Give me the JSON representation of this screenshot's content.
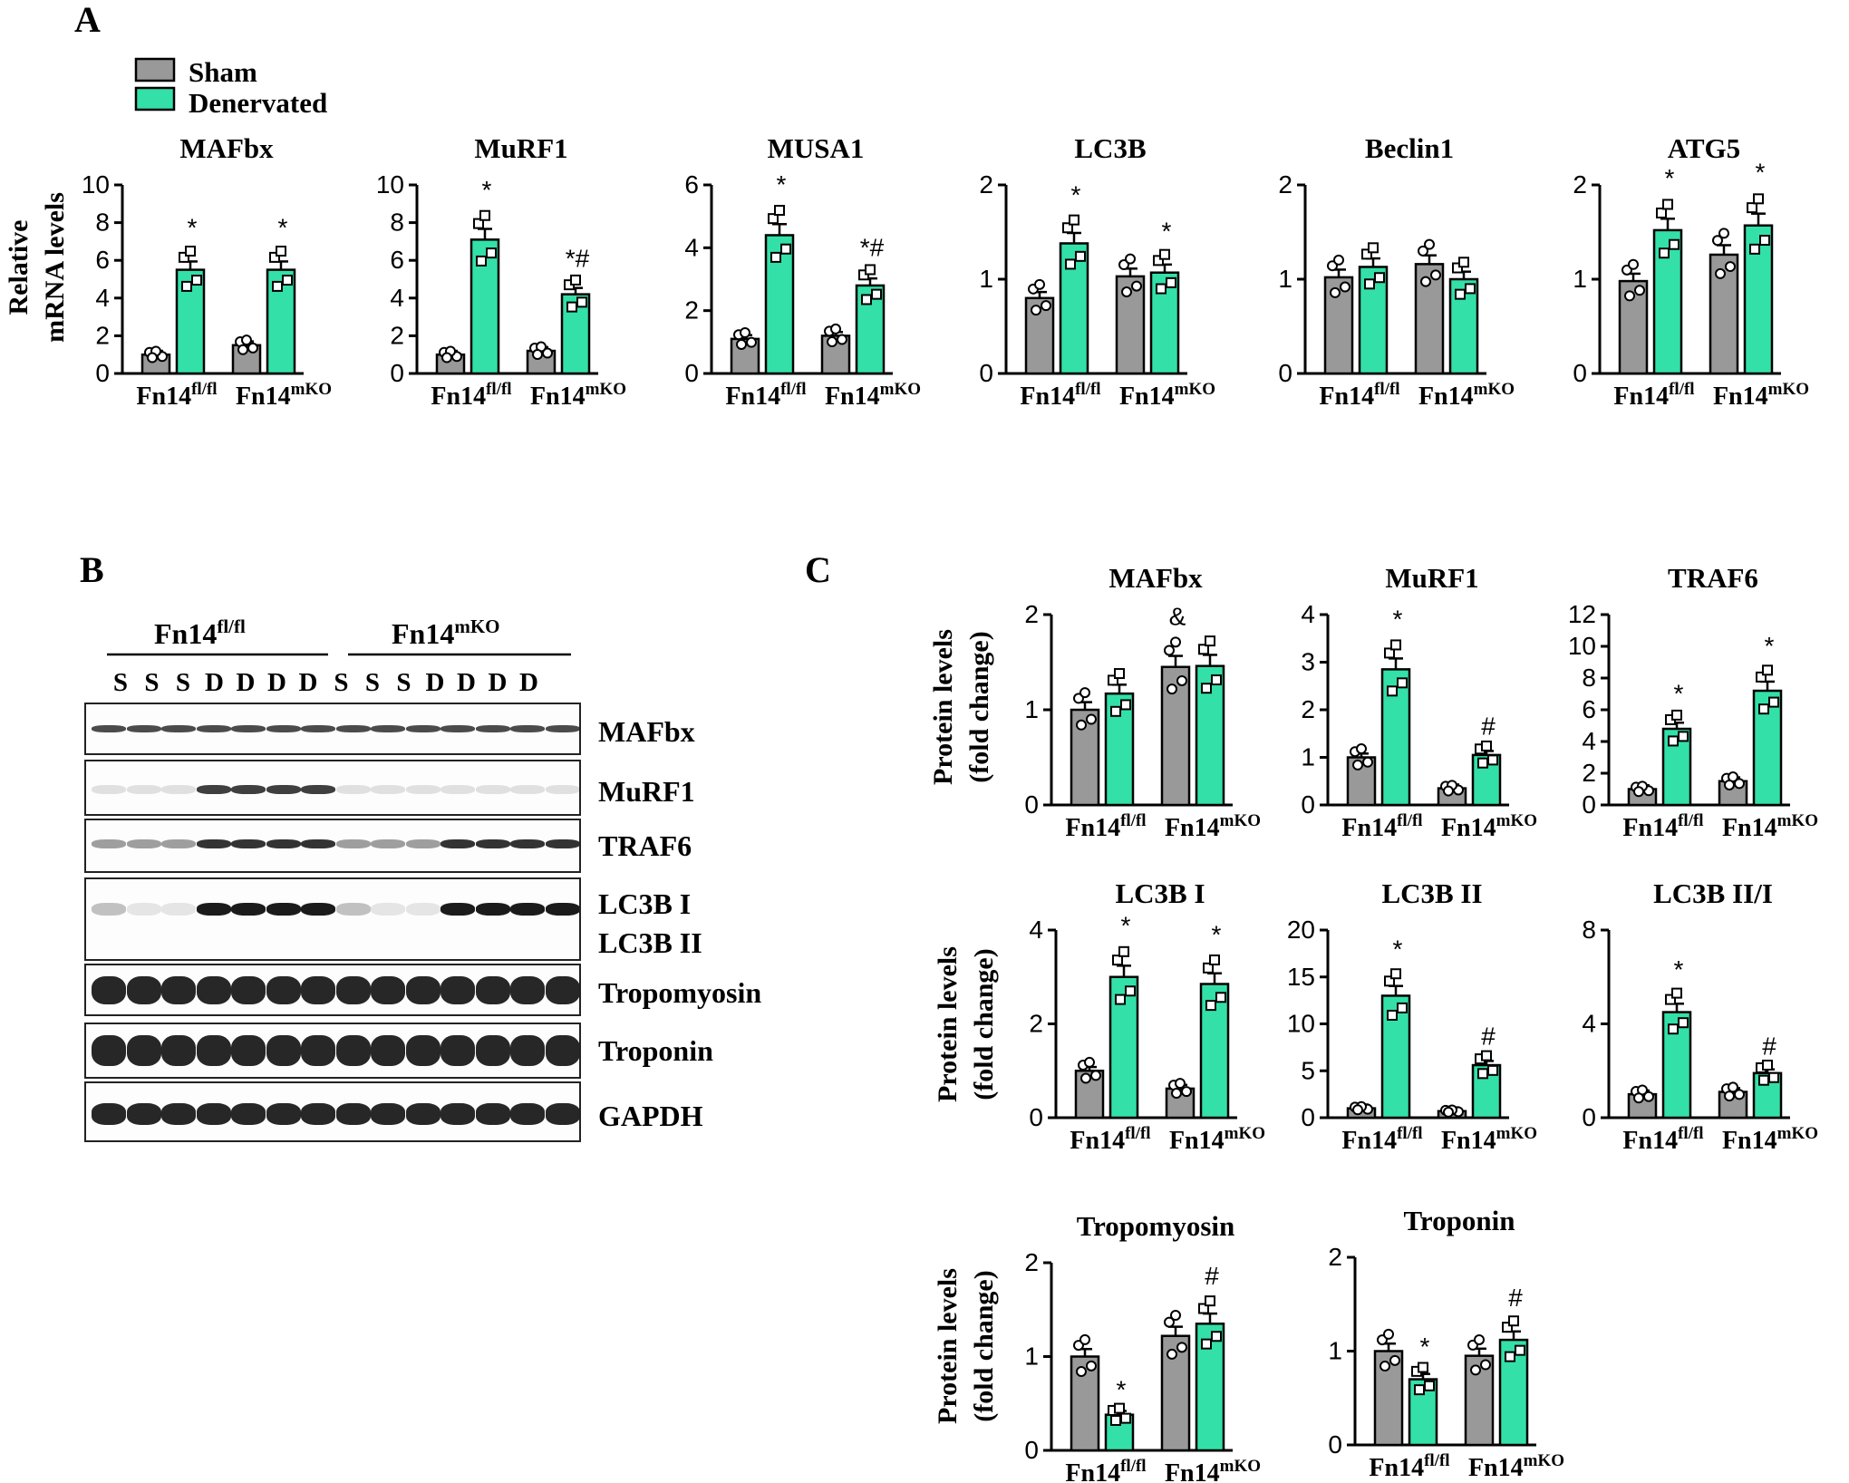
{
  "panel_letters": {
    "a": "A",
    "b": "B",
    "c": "C"
  },
  "legend": {
    "items": [
      {
        "label": "Sham",
        "color": "#999999"
      },
      {
        "label": "Denervated",
        "color": "#33e0a8"
      }
    ]
  },
  "group_labels": {
    "g1_base": "Fn14",
    "g1_sup": "fl/fl",
    "g2_base": "Fn14",
    "g2_sup": "mKO"
  },
  "y_titles": {
    "mrna": [
      "Relative",
      "mRNA levels"
    ],
    "protein": [
      "Protein levels",
      "(fold change)"
    ]
  },
  "colors": {
    "sham": "#999999",
    "denervated": "#33e0a8",
    "axis": "#000000"
  },
  "blot": {
    "header": {
      "g1_base": "Fn14",
      "g1_sup": "fl/fl",
      "g2_base": "Fn14",
      "g2_sup": "mKO"
    },
    "lanes": [
      "S",
      "S",
      "S",
      "D",
      "D",
      "D",
      "D",
      "S",
      "S",
      "S",
      "D",
      "D",
      "D",
      "D"
    ],
    "rows": [
      {
        "label": "MAFbx",
        "sublabel": ""
      },
      {
        "label": "MuRF1",
        "sublabel": ""
      },
      {
        "label": "TRAF6",
        "sublabel": ""
      },
      {
        "label": "LC3B I",
        "sublabel": "LC3B II"
      },
      {
        "label": "Tropomyosin",
        "sublabel": ""
      },
      {
        "label": "Troponin",
        "sublabel": ""
      },
      {
        "label": "GAPDH",
        "sublabel": ""
      }
    ]
  },
  "chart_data": [
    {
      "type": "bar",
      "panel": "A",
      "title": "MAFbx",
      "ylim": [
        0,
        10
      ],
      "yticks": [
        0,
        2,
        4,
        6,
        8,
        10
      ],
      "ylabel": "Relative mRNA levels",
      "categories": [
        "Fn14 fl/fl",
        "Fn14 mKO"
      ],
      "series": [
        {
          "name": "Sham",
          "values": [
            1.0,
            1.5
          ]
        },
        {
          "name": "Denervated",
          "values": [
            5.5,
            5.5
          ]
        }
      ],
      "annotations": [
        "",
        "",
        "*",
        "*"
      ]
    },
    {
      "type": "bar",
      "panel": "A",
      "title": "MuRF1",
      "ylim": [
        0,
        10
      ],
      "yticks": [
        0,
        2,
        4,
        6,
        8,
        10
      ],
      "categories": [
        "Fn14 fl/fl",
        "Fn14 mKO"
      ],
      "series": [
        {
          "name": "Sham",
          "values": [
            1.0,
            1.2
          ]
        },
        {
          "name": "Denervated",
          "values": [
            7.1,
            4.2
          ]
        }
      ],
      "annotations": [
        "",
        "",
        "*",
        "*#"
      ]
    },
    {
      "type": "bar",
      "panel": "A",
      "title": "MUSA1",
      "ylim": [
        0,
        6
      ],
      "yticks": [
        0,
        2,
        4,
        6
      ],
      "categories": [
        "Fn14 fl/fl",
        "Fn14 mKO"
      ],
      "series": [
        {
          "name": "Sham",
          "values": [
            1.1,
            1.2
          ]
        },
        {
          "name": "Denervated",
          "values": [
            4.4,
            2.8
          ]
        }
      ],
      "annotations": [
        "",
        "",
        "*",
        "*#"
      ]
    },
    {
      "type": "bar",
      "panel": "A",
      "title": "LC3B",
      "ylim": [
        0,
        2
      ],
      "yticks": [
        0,
        1,
        2
      ],
      "categories": [
        "Fn14 fl/fl",
        "Fn14 mKO"
      ],
      "series": [
        {
          "name": "Sham",
          "values": [
            0.8,
            1.03
          ]
        },
        {
          "name": "Denervated",
          "values": [
            1.38,
            1.07
          ]
        }
      ],
      "annotations": [
        "",
        "",
        "*",
        "*"
      ]
    },
    {
      "type": "bar",
      "panel": "A",
      "title": "Beclin1",
      "ylim": [
        0,
        2
      ],
      "yticks": [
        0,
        1,
        2
      ],
      "categories": [
        "Fn14 fl/fl",
        "Fn14 mKO"
      ],
      "series": [
        {
          "name": "Sham",
          "values": [
            1.02,
            1.16
          ]
        },
        {
          "name": "Denervated",
          "values": [
            1.13,
            1.0
          ]
        }
      ],
      "annotations": [
        "",
        "",
        "",
        ""
      ]
    },
    {
      "type": "bar",
      "panel": "A",
      "title": "ATG5",
      "ylim": [
        0,
        2
      ],
      "yticks": [
        0,
        1,
        2
      ],
      "categories": [
        "Fn14 fl/fl",
        "Fn14 mKO"
      ],
      "series": [
        {
          "name": "Sham",
          "values": [
            0.98,
            1.26
          ]
        },
        {
          "name": "Denervated",
          "values": [
            1.52,
            1.57
          ]
        }
      ],
      "annotations": [
        "",
        "",
        "*",
        "*"
      ]
    },
    {
      "type": "bar",
      "panel": "C",
      "title": "MAFbx",
      "ylim": [
        0,
        2
      ],
      "yticks": [
        0,
        1,
        2
      ],
      "ylabel": "Protein levels (fold change)",
      "categories": [
        "Fn14 fl/fl",
        "Fn14 mKO"
      ],
      "series": [
        {
          "name": "Sham",
          "values": [
            1.0,
            1.45
          ]
        },
        {
          "name": "Denervated",
          "values": [
            1.17,
            1.46
          ]
        }
      ],
      "annotations": [
        "",
        "&",
        "",
        ""
      ]
    },
    {
      "type": "bar",
      "panel": "C",
      "title": "MuRF1",
      "ylim": [
        0,
        4
      ],
      "yticks": [
        0,
        1,
        2,
        3,
        4
      ],
      "categories": [
        "Fn14 fl/fl",
        "Fn14 mKO"
      ],
      "series": [
        {
          "name": "Sham",
          "values": [
            1.0,
            0.35
          ]
        },
        {
          "name": "Denervated",
          "values": [
            2.85,
            1.05
          ]
        }
      ],
      "annotations": [
        "",
        "",
        "*",
        "#"
      ]
    },
    {
      "type": "bar",
      "panel": "C",
      "title": "TRAF6",
      "ylim": [
        0,
        12
      ],
      "yticks": [
        0,
        2,
        4,
        6,
        8,
        10,
        12
      ],
      "categories": [
        "Fn14 fl/fl",
        "Fn14 mKO"
      ],
      "series": [
        {
          "name": "Sham",
          "values": [
            1.0,
            1.5
          ]
        },
        {
          "name": "Denervated",
          "values": [
            4.8,
            7.2
          ]
        }
      ],
      "annotations": [
        "",
        "",
        "*",
        "*"
      ]
    },
    {
      "type": "bar",
      "panel": "C",
      "title": "LC3B I",
      "ylim": [
        0,
        4
      ],
      "yticks": [
        0,
        2,
        4
      ],
      "ylabel": "Protein levels (fold change)",
      "categories": [
        "Fn14 fl/fl",
        "Fn14 mKO"
      ],
      "series": [
        {
          "name": "Sham",
          "values": [
            1.0,
            0.62
          ]
        },
        {
          "name": "Denervated",
          "values": [
            3.0,
            2.85
          ]
        }
      ],
      "annotations": [
        "",
        "",
        "*",
        "*"
      ]
    },
    {
      "type": "bar",
      "panel": "C",
      "title": "LC3B II",
      "ylim": [
        0,
        20
      ],
      "yticks": [
        0,
        5,
        10,
        15,
        20
      ],
      "categories": [
        "Fn14 fl/fl",
        "Fn14 mKO"
      ],
      "series": [
        {
          "name": "Sham",
          "values": [
            1.0,
            0.7
          ]
        },
        {
          "name": "Denervated",
          "values": [
            13.0,
            5.6
          ]
        }
      ],
      "annotations": [
        "",
        "",
        "*",
        "#"
      ]
    },
    {
      "type": "bar",
      "panel": "C",
      "title": "LC3B II/I",
      "ylim": [
        0,
        8
      ],
      "yticks": [
        0,
        4,
        8
      ],
      "categories": [
        "Fn14 fl/fl",
        "Fn14 mKO"
      ],
      "series": [
        {
          "name": "Sham",
          "values": [
            1.0,
            1.1
          ]
        },
        {
          "name": "Denervated",
          "values": [
            4.5,
            1.9
          ]
        }
      ],
      "annotations": [
        "",
        "",
        "*",
        "#"
      ]
    },
    {
      "type": "bar",
      "panel": "C",
      "title": "Tropomyosin",
      "ylim": [
        0,
        2
      ],
      "yticks": [
        0,
        1,
        2
      ],
      "ylabel": "Protein levels (fold change)",
      "categories": [
        "Fn14 fl/fl",
        "Fn14 mKO"
      ],
      "series": [
        {
          "name": "Sham",
          "values": [
            1.0,
            1.22
          ]
        },
        {
          "name": "Denervated",
          "values": [
            0.38,
            1.35
          ]
        }
      ],
      "annotations": [
        "",
        "",
        "*",
        "#"
      ]
    },
    {
      "type": "bar",
      "panel": "C",
      "title": "Troponin",
      "ylim": [
        0,
        2
      ],
      "yticks": [
        0,
        1,
        2
      ],
      "categories": [
        "Fn14 fl/fl",
        "Fn14 mKO"
      ],
      "series": [
        {
          "name": "Sham",
          "values": [
            1.0,
            0.95
          ]
        },
        {
          "name": "Denervated",
          "values": [
            0.7,
            1.12
          ]
        }
      ],
      "annotations": [
        "",
        "",
        "*",
        "#"
      ]
    }
  ]
}
